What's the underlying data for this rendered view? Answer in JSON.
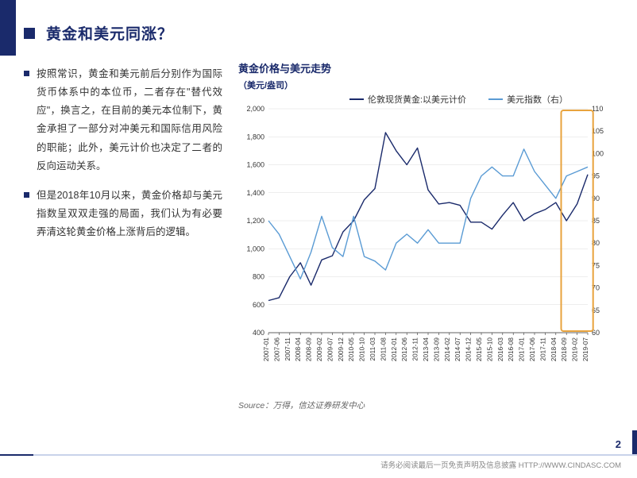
{
  "title": "黄金和美元同涨？",
  "bullets": [
    "按照常识，黄金和美元前后分别作为国际货币体系中的本位币，二者存在\"替代效应\"，换言之，在目前的美元本位制下，黄金承担了一部分对冲美元和国际信用风险的职能；此外，美元计价也决定了二者的反向运动关系。",
    "但是2018年10月以来，黄金价格却与美元指数呈双双走强的局面，我们认为有必要弄清这轮黄金价格上涨背后的逻辑。"
  ],
  "chart": {
    "title": "黄金价格与美元走势",
    "unit_label": "（美元/盎司）",
    "source": "Source：万得，信达证券研发中心",
    "type": "dual-axis-line",
    "x_labels": [
      "2007-01",
      "2007-06",
      "2007-11",
      "2008-04",
      "2008-09",
      "2009-02",
      "2009-07",
      "2009-12",
      "2010-05",
      "2010-10",
      "2011-03",
      "2011-08",
      "2012-01",
      "2012-06",
      "2012-11",
      "2013-04",
      "2013-09",
      "2014-02",
      "2014-07",
      "2014-12",
      "2015-05",
      "2015-10",
      "2016-03",
      "2016-08",
      "2017-01",
      "2017-06",
      "2017-11",
      "2018-04",
      "2018-09",
      "2019-02",
      "2019-07"
    ],
    "left_axis": {
      "min": 400,
      "max": 2000,
      "step": 200,
      "ticks": [
        400,
        600,
        800,
        1000,
        1200,
        1400,
        1600,
        1800,
        2000
      ]
    },
    "right_axis": {
      "min": 60,
      "max": 110,
      "step": 5,
      "ticks": [
        60,
        65,
        70,
        75,
        80,
        85,
        90,
        95,
        100,
        105,
        110
      ]
    },
    "series": [
      {
        "name": "伦敦现货黄金:以美元计价",
        "axis": "left",
        "color": "#1a2a6b",
        "width": 1.4,
        "values": [
          630,
          650,
          800,
          900,
          740,
          920,
          950,
          1120,
          1200,
          1350,
          1430,
          1830,
          1700,
          1600,
          1720,
          1420,
          1320,
          1330,
          1310,
          1190,
          1190,
          1140,
          1240,
          1330,
          1200,
          1250,
          1280,
          1330,
          1200,
          1320,
          1530
        ]
      },
      {
        "name": "美元指数（右）",
        "axis": "right",
        "color": "#5a9bd4",
        "width": 1.4,
        "values": [
          85,
          82,
          77,
          72,
          78,
          86,
          79,
          77,
          86,
          77,
          76,
          74,
          80,
          82,
          80,
          83,
          80,
          80,
          80,
          90,
          95,
          97,
          95,
          95,
          101,
          96,
          93,
          90,
          95,
          96,
          97
        ]
      }
    ],
    "highlight_box": {
      "x_start_idx": 27.5,
      "x_end_idx": 30.5,
      "color": "#e8a33d",
      "width": 2
    },
    "grid_color": "#dddddd",
    "axis_color": "#333333",
    "tick_label_color": "#333333",
    "tick_fontsize": 9,
    "background": "#ffffff"
  },
  "page_number": "2",
  "disclaimer": "请务必阅读最后一页免责声明及信息披露   HTTP://WWW.CINDASC.COM",
  "colors": {
    "brand": "#1a2a6b",
    "secondary": "#5a9bd4",
    "highlight": "#e8a33d",
    "footer_light": "#c9d3ea"
  }
}
